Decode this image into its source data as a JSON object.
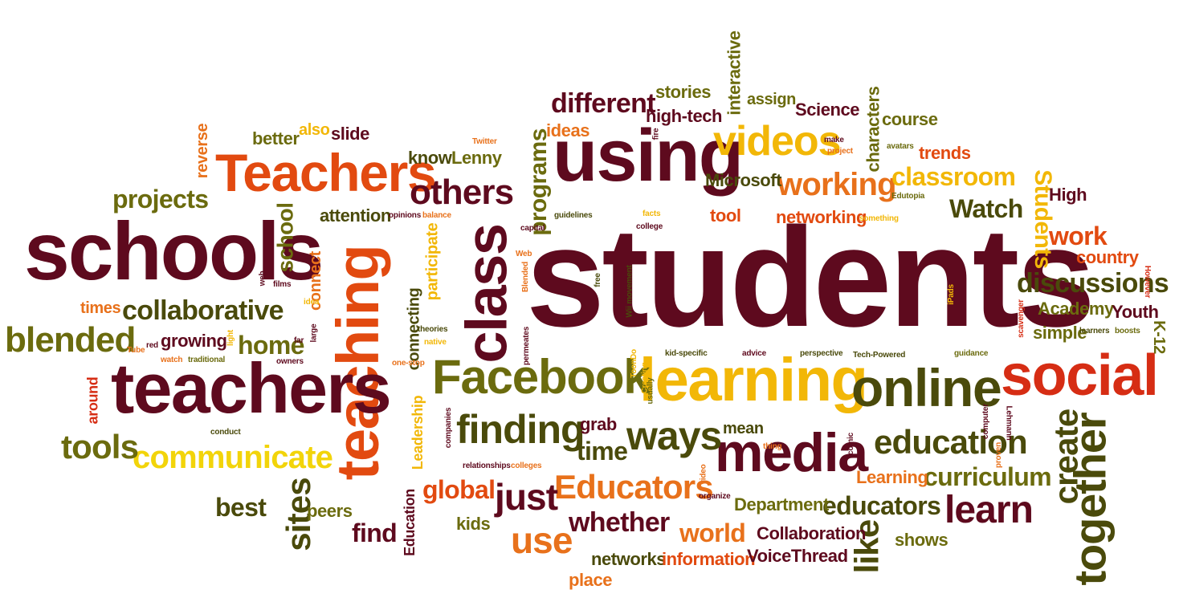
{
  "colors": {
    "maroon": "#5e0a1e",
    "dark_olive": "#4a4a0b",
    "olive": "#6b6b0e",
    "orange": "#e8711b",
    "red_orange": "#e24a10",
    "gold": "#f2b707",
    "yellow": "#f2d40a",
    "red": "#d62d14"
  },
  "words": [
    {
      "text": "students",
      "color": "maroon"
    },
    {
      "text": "teaching",
      "color": "red_orange"
    },
    {
      "text": "schools",
      "color": "maroon"
    },
    {
      "text": "teachers",
      "color": "maroon"
    },
    {
      "text": "using",
      "color": "maroon"
    },
    {
      "text": "class",
      "color": "maroon"
    },
    {
      "text": "learning",
      "color": "gold"
    },
    {
      "text": "online",
      "color": "dark_olive"
    },
    {
      "text": "social",
      "color": "red"
    },
    {
      "text": "Facebook",
      "color": "olive"
    },
    {
      "text": "Teachers",
      "color": "red_orange"
    },
    {
      "text": "media",
      "color": "maroon"
    },
    {
      "text": "together",
      "color": "dark_olive"
    },
    {
      "text": "videos",
      "color": "gold"
    },
    {
      "text": "finding",
      "color": "dark_olive"
    },
    {
      "text": "blended",
      "color": "olive"
    },
    {
      "text": "collaborative",
      "color": "dark_olive"
    },
    {
      "text": "ways",
      "color": "dark_olive"
    },
    {
      "text": "education",
      "color": "dark_olive"
    },
    {
      "text": "Educators",
      "color": "orange"
    },
    {
      "text": "communicate",
      "color": "yellow"
    },
    {
      "text": "others",
      "color": "maroon"
    },
    {
      "text": "working",
      "color": "orange"
    },
    {
      "text": "create",
      "color": "dark_olive"
    },
    {
      "text": "learn",
      "color": "maroon"
    },
    {
      "text": "just",
      "color": "maroon"
    },
    {
      "text": "tools",
      "color": "olive"
    },
    {
      "text": "discussions",
      "color": "dark_olive"
    },
    {
      "text": "classroom",
      "color": "gold"
    },
    {
      "text": "different",
      "color": "maroon"
    },
    {
      "text": "sites",
      "color": "dark_olive"
    },
    {
      "text": "like",
      "color": "dark_olive"
    },
    {
      "text": "use",
      "color": "orange"
    },
    {
      "text": "projects",
      "color": "olive"
    },
    {
      "text": "curriculum",
      "color": "olive"
    },
    {
      "text": "educators",
      "color": "dark_olive"
    },
    {
      "text": "whether",
      "color": "maroon"
    },
    {
      "text": "global",
      "color": "red_orange"
    },
    {
      "text": "time",
      "color": "dark_olive"
    },
    {
      "text": "world",
      "color": "orange"
    },
    {
      "text": "programs",
      "color": "olive"
    },
    {
      "text": "home",
      "color": "olive"
    },
    {
      "text": "Students",
      "color": "gold"
    },
    {
      "text": "school",
      "color": "olive"
    },
    {
      "text": "Watch",
      "color": "dark_olive"
    },
    {
      "text": "work",
      "color": "red_orange"
    },
    {
      "text": "best",
      "color": "dark_olive"
    },
    {
      "text": "find",
      "color": "maroon"
    },
    {
      "text": "participate",
      "color": "gold"
    },
    {
      "text": "connecting",
      "color": "dark_olive"
    },
    {
      "text": "high-tech",
      "color": "maroon"
    },
    {
      "text": "stories",
      "color": "olive"
    },
    {
      "text": "interactive",
      "color": "olive"
    },
    {
      "text": "Microsoft",
      "color": "dark_olive"
    },
    {
      "text": "Science",
      "color": "maroon"
    },
    {
      "text": "characters",
      "color": "olive"
    },
    {
      "text": "course",
      "color": "olive"
    },
    {
      "text": "trends",
      "color": "red_orange"
    },
    {
      "text": "networking",
      "color": "red_orange"
    },
    {
      "text": "tool",
      "color": "red_orange"
    },
    {
      "text": "Academy",
      "color": "olive"
    },
    {
      "text": "Youth",
      "color": "maroon"
    },
    {
      "text": "simple",
      "color": "olive"
    },
    {
      "text": "country",
      "color": "red_orange"
    },
    {
      "text": "High",
      "color": "maroon"
    },
    {
      "text": "K-12",
      "color": "olive"
    },
    {
      "text": "growing",
      "color": "maroon"
    },
    {
      "text": "attention",
      "color": "dark_olive"
    },
    {
      "text": "know",
      "color": "dark_olive"
    },
    {
      "text": "Lenny",
      "color": "olive"
    },
    {
      "text": "ideas",
      "color": "orange"
    },
    {
      "text": "better",
      "color": "olive"
    },
    {
      "text": "also",
      "color": "gold"
    },
    {
      "text": "slide",
      "color": "maroon"
    },
    {
      "text": "reverse",
      "color": "orange"
    },
    {
      "text": "times",
      "color": "orange"
    },
    {
      "text": "around",
      "color": "red"
    },
    {
      "text": "connect",
      "color": "orange"
    },
    {
      "text": "Leadership",
      "color": "gold"
    },
    {
      "text": "Education",
      "color": "maroon"
    },
    {
      "text": "kids",
      "color": "olive"
    },
    {
      "text": "peers",
      "color": "olive"
    },
    {
      "text": "networks",
      "color": "dark_olive"
    },
    {
      "text": "information",
      "color": "red_orange"
    },
    {
      "text": "VoiceThread",
      "color": "maroon"
    },
    {
      "text": "place",
      "color": "orange"
    },
    {
      "text": "Collaboration",
      "color": "maroon"
    },
    {
      "text": "Department",
      "color": "olive"
    },
    {
      "text": "shows",
      "color": "olive"
    },
    {
      "text": "Learning",
      "color": "orange"
    },
    {
      "text": "mean",
      "color": "dark_olive"
    },
    {
      "text": "grab",
      "color": "maroon"
    },
    {
      "text": "assign",
      "color": "olive"
    },
    {
      "text": "Twitter",
      "color": "orange"
    },
    {
      "text": "opinions",
      "color": "maroon"
    },
    {
      "text": "balance",
      "color": "orange"
    },
    {
      "text": "guidelines",
      "color": "dark_olive"
    },
    {
      "text": "capital",
      "color": "maroon"
    },
    {
      "text": "facts",
      "color": "gold"
    },
    {
      "text": "college",
      "color": "maroon"
    },
    {
      "text": "fire",
      "color": "maroon"
    },
    {
      "text": "make",
      "color": "maroon"
    },
    {
      "text": "project",
      "color": "orange"
    },
    {
      "text": "avatars",
      "color": "olive"
    },
    {
      "text": "Edutopia",
      "color": "olive"
    },
    {
      "text": "something",
      "color": "gold"
    },
    {
      "text": "Web",
      "color": "orange"
    },
    {
      "text": "Blended",
      "color": "orange"
    },
    {
      "text": "free",
      "color": "dark_olive"
    },
    {
      "text": "Wii movement",
      "color": "dark_olive"
    },
    {
      "text": "films",
      "color": "maroon"
    },
    {
      "text": "web",
      "color": "maroon"
    },
    {
      "text": "idea",
      "color": "gold"
    },
    {
      "text": "far",
      "color": "maroon"
    },
    {
      "text": "large",
      "color": "maroon"
    },
    {
      "text": "theories",
      "color": "dark_olive"
    },
    {
      "text": "native",
      "color": "gold"
    },
    {
      "text": "permeates",
      "color": "maroon"
    },
    {
      "text": "kid-specific",
      "color": "dark_olive"
    },
    {
      "text": "advice",
      "color": "maroon"
    },
    {
      "text": "perspective",
      "color": "dark_olive"
    },
    {
      "text": "Tech-Powered",
      "color": "dark_olive"
    },
    {
      "text": "guidance",
      "color": "olive"
    },
    {
      "text": "learners",
      "color": "dark_olive"
    },
    {
      "text": "boosts",
      "color": "olive"
    },
    {
      "text": "scavenger",
      "color": "red"
    },
    {
      "text": "iPads",
      "color": "gold"
    },
    {
      "text": "However",
      "color": "red"
    },
    {
      "text": "light",
      "color": "gold"
    },
    {
      "text": "Tube",
      "color": "orange"
    },
    {
      "text": "red",
      "color": "maroon"
    },
    {
      "text": "watch",
      "color": "orange"
    },
    {
      "text": "traditional",
      "color": "olive"
    },
    {
      "text": "owners",
      "color": "maroon"
    },
    {
      "text": "conduct",
      "color": "dark_olive"
    },
    {
      "text": "one-stop",
      "color": "orange"
    },
    {
      "text": "ToonDo",
      "color": "gold"
    },
    {
      "text": "Creating",
      "color": "gold"
    },
    {
      "text": "usually",
      "color": "olive"
    },
    {
      "text": "companies",
      "color": "maroon"
    },
    {
      "text": "relationships",
      "color": "maroon"
    },
    {
      "text": "colleges",
      "color": "orange"
    },
    {
      "text": "video",
      "color": "orange"
    },
    {
      "text": "organize",
      "color": "maroon"
    },
    {
      "text": "thing",
      "color": "orange"
    },
    {
      "text": "comic",
      "color": "maroon"
    },
    {
      "text": "computer",
      "color": "maroon"
    },
    {
      "text": "Lehmann",
      "color": "maroon"
    },
    {
      "text": "proven",
      "color": "orange"
    }
  ]
}
